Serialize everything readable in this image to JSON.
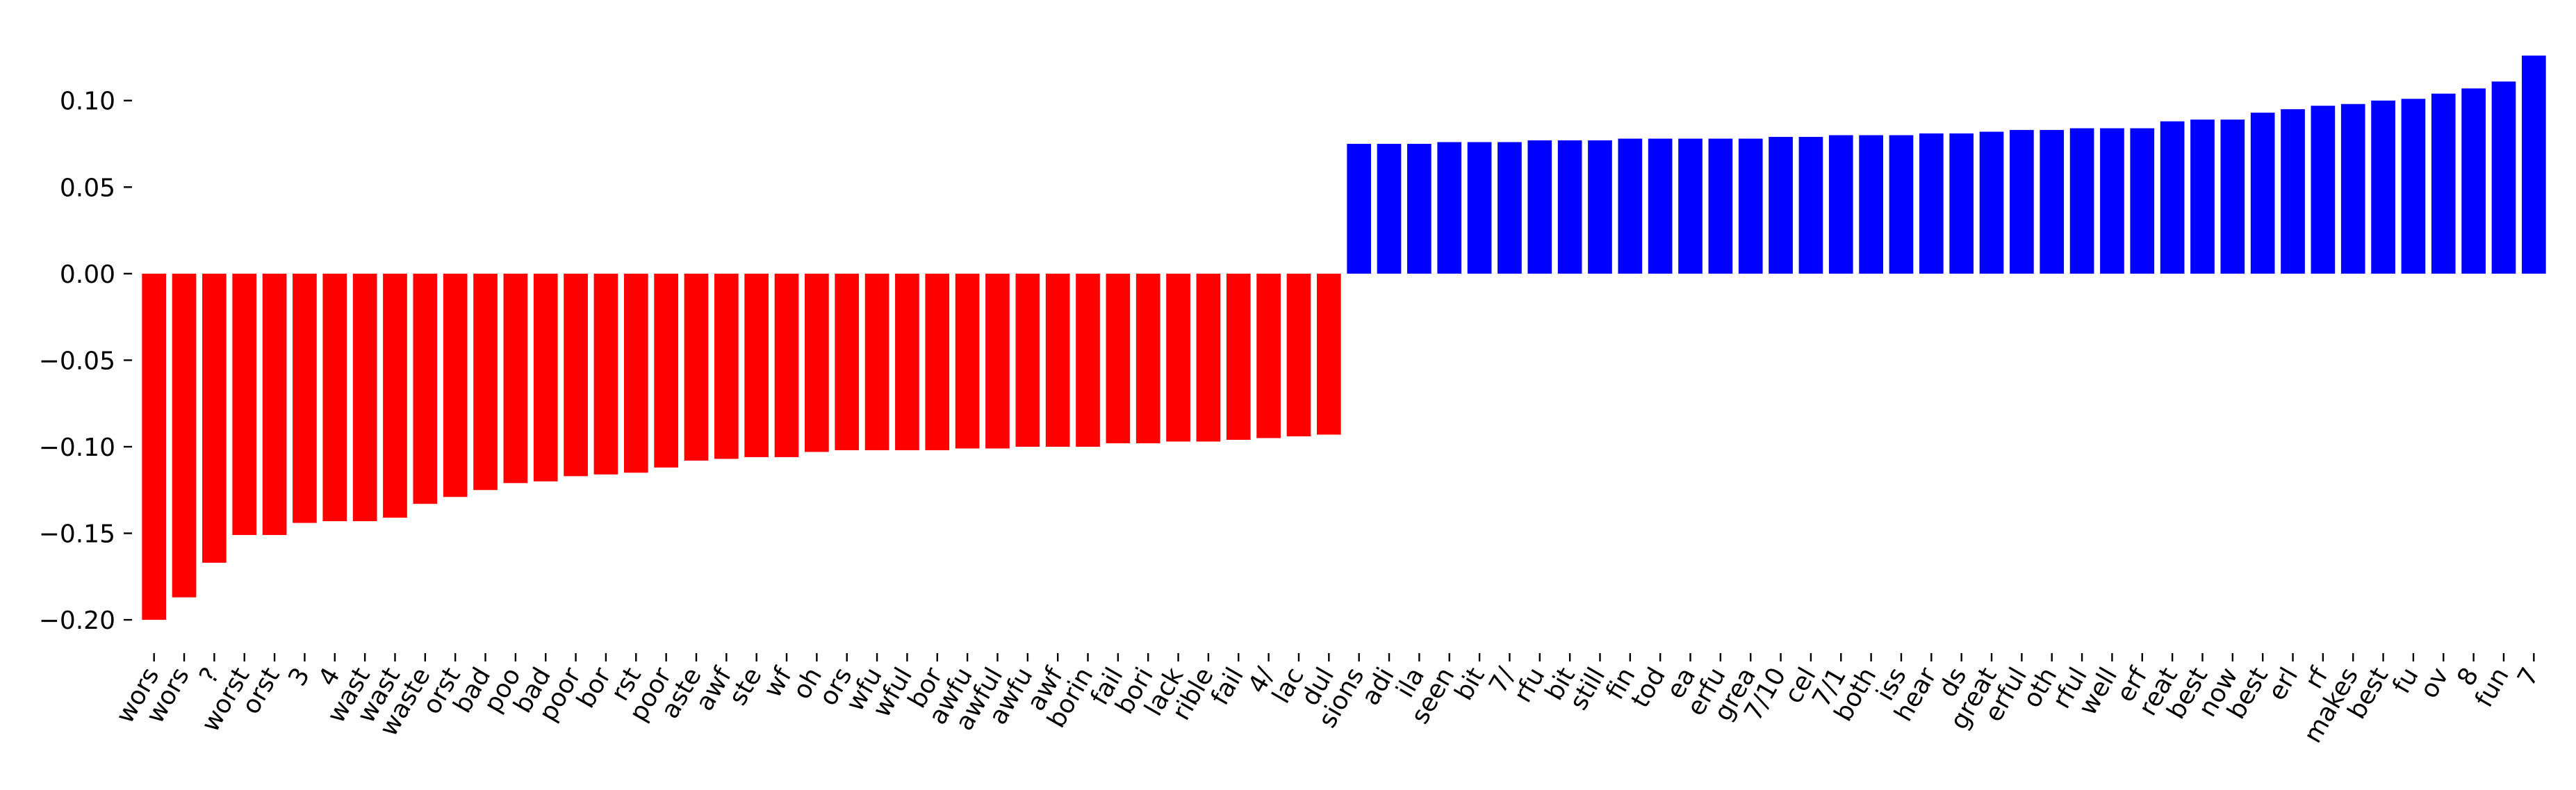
{
  "chart_data": {
    "type": "bar",
    "categories": [
      "wors",
      "wors",
      "?",
      "worst",
      "orst",
      "3",
      "4",
      "wast",
      "wast",
      "waste",
      "orst",
      "bad",
      "poo",
      "bad",
      "poor",
      "bor",
      "rst",
      "poor",
      "aste",
      "awf",
      "ste",
      "wf",
      "oh",
      "ors",
      "wfu",
      "wful",
      "bor",
      "awfu",
      "awful",
      "awfu",
      "awf",
      "borin",
      "fail",
      "bori",
      "lack",
      "rible",
      "fail",
      "4/",
      "lac",
      "dul",
      "sions",
      "adi",
      "ila",
      "seen",
      "bit",
      "7/",
      "rfu",
      "bit",
      "still",
      "fin",
      "tod",
      "ea",
      "erfu",
      "grea",
      "7/10",
      "cel",
      "7/1",
      "both",
      "iss",
      "hear",
      "ds",
      "great",
      "erful",
      "oth",
      "rful",
      "well",
      "erf",
      "reat",
      "best",
      "now",
      "best",
      "erl",
      "rf",
      "makes",
      "best",
      "fu",
      "ov",
      "8",
      "fun",
      "7"
    ],
    "values": [
      -0.2,
      -0.187,
      -0.167,
      -0.151,
      -0.151,
      -0.144,
      -0.143,
      -0.143,
      -0.141,
      -0.133,
      -0.129,
      -0.125,
      -0.121,
      -0.12,
      -0.117,
      -0.116,
      -0.115,
      -0.112,
      -0.108,
      -0.107,
      -0.106,
      -0.106,
      -0.103,
      -0.102,
      -0.102,
      -0.102,
      -0.102,
      -0.101,
      -0.101,
      -0.1,
      -0.1,
      -0.1,
      -0.098,
      -0.098,
      -0.097,
      -0.097,
      -0.096,
      -0.095,
      -0.094,
      -0.093,
      0.075,
      0.075,
      0.075,
      0.076,
      0.076,
      0.076,
      0.077,
      0.077,
      0.077,
      0.078,
      0.078,
      0.078,
      0.078,
      0.078,
      0.079,
      0.079,
      0.08,
      0.08,
      0.08,
      0.081,
      0.081,
      0.082,
      0.083,
      0.083,
      0.084,
      0.084,
      0.084,
      0.088,
      0.089,
      0.089,
      0.093,
      0.095,
      0.097,
      0.098,
      0.1,
      0.101,
      0.104,
      0.107,
      0.111,
      0.126
    ],
    "color_negative": "#ff0000",
    "color_positive": "#0000ff",
    "ylim": [
      -0.21,
      0.13
    ],
    "yticks": [
      {
        "value": -0.2,
        "label": "−0.20"
      },
      {
        "value": -0.15,
        "label": "−0.15"
      },
      {
        "value": -0.1,
        "label": "−0.10"
      },
      {
        "value": -0.05,
        "label": "−0.05"
      },
      {
        "value": 0,
        "label": "0.00"
      },
      {
        "value": 0.05,
        "label": "0.05"
      },
      {
        "value": 0.1,
        "label": "0.10"
      }
    ],
    "grid": false
  }
}
